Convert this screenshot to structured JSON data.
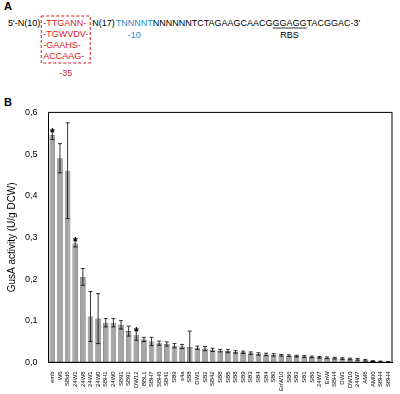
{
  "panel_a": {
    "panel_label": "A",
    "prefix": "5'-N(10)",
    "box_lines": [
      "-TTGANN-",
      "-TGWVDV-",
      "-GAAHS-",
      "ACCAAG-"
    ],
    "box_label": "-35",
    "spacer": "N(17)",
    "minus10": "TNNNNT",
    "minus10_label": "-10",
    "middle": "NNNNNNTCTAGAAGCAACG",
    "rbs": "GGAGG",
    "suffix": "TACGGAC-3'",
    "rbs_label": "RBS"
  },
  "chart_data": {
    "type": "bar",
    "panel_label": "B",
    "y_label": "GusA activity (U/g DCW)",
    "color": "#a6a6a6",
    "categories": [
      "emb",
      "W6",
      "SBd6",
      "24W1",
      "24W8",
      "24W1",
      "24W0",
      "SBH1",
      "24W0",
      "SB91",
      "SB91",
      "DW12",
      "BBL1",
      "SBH7",
      "SBH6",
      "SB41",
      "SB9",
      "s4a",
      "SB8",
      "DW1",
      "SB2",
      "SB42",
      "SB8",
      "SB5",
      "SB8",
      "SB9",
      "SB3",
      "SB4",
      "SB4",
      "SB0",
      "EnW10",
      "SB6",
      "SB3",
      "SB1",
      "SB6",
      "24W7",
      "EnW",
      "SBH4",
      "DW1",
      "DW10",
      "24W7",
      "AM8",
      "AM00",
      "SBH4",
      "SBH4"
    ],
    "values": [
      0.545,
      0.49,
      0.46,
      0.285,
      0.205,
      0.11,
      0.105,
      0.095,
      0.095,
      0.09,
      0.075,
      0.065,
      0.055,
      0.05,
      0.046,
      0.044,
      0.04,
      0.038,
      0.037,
      0.035,
      0.033,
      0.03,
      0.028,
      0.027,
      0.025,
      0.024,
      0.022,
      0.02,
      0.019,
      0.018,
      0.017,
      0.016,
      0.015,
      0.014,
      0.013,
      0.012,
      0.011,
      0.01,
      0.009,
      0.008,
      0.007,
      0.005,
      0.003,
      0.002,
      0.001
    ],
    "errors": [
      0.01,
      0.035,
      0.115,
      0.008,
      0.02,
      0.06,
      0.06,
      0.01,
      0.01,
      0.01,
      0.012,
      0.012,
      0.005,
      0.01,
      0.005,
      0.005,
      0.005,
      0.005,
      0.038,
      0.004,
      0.005,
      0.004,
      0.003,
      0.004,
      0.003,
      0.003,
      0.003,
      0.003,
      0.003,
      0.003,
      0.002,
      0.002,
      0.002,
      0.002,
      0.002,
      0.002,
      0.002,
      0.002,
      0.002,
      0.002,
      0.002,
      0.002,
      0.001,
      0.001,
      0.001
    ],
    "annotations": [
      "*",
      null,
      null,
      "*",
      null,
      null,
      null,
      null,
      null,
      null,
      null,
      "*",
      null,
      null,
      null,
      null,
      null,
      null,
      null,
      null,
      null,
      null,
      null,
      null,
      null,
      null,
      null,
      null,
      null,
      null,
      null,
      null,
      null,
      null,
      null,
      null,
      null,
      null,
      null,
      null,
      null,
      null,
      null,
      null,
      null
    ],
    "ylim": [
      0,
      0.6
    ],
    "yticks": [
      {
        "value": 0,
        "label": "0,0"
      },
      {
        "value": 0.1,
        "label": "0,1"
      },
      {
        "value": 0.2,
        "label": "0,2"
      },
      {
        "value": 0.3,
        "label": "0,3"
      },
      {
        "value": 0.4,
        "label": "0,4"
      },
      {
        "value": 0.5,
        "label": "0,5"
      },
      {
        "value": 0.6,
        "label": "0,6"
      }
    ],
    "grid": false
  }
}
